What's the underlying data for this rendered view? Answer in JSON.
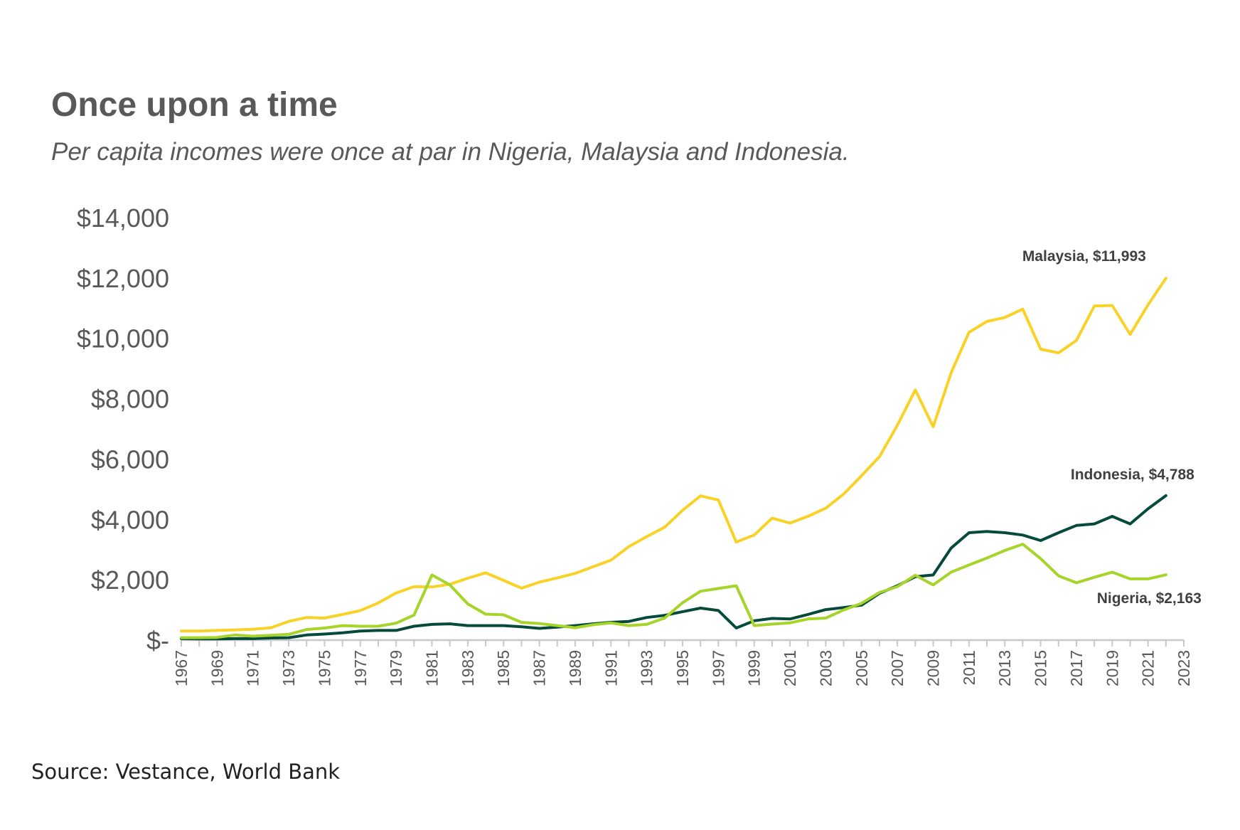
{
  "chart_data": {
    "type": "line",
    "title": "Once upon a time",
    "subtitle": "Per capita incomes were once at par in Nigeria, Malaysia and Indonesia.",
    "source": "Source: Vestance, World Bank",
    "x": [
      1967,
      1968,
      1969,
      1970,
      1971,
      1972,
      1973,
      1974,
      1975,
      1976,
      1977,
      1978,
      1979,
      1980,
      1981,
      1982,
      1983,
      1984,
      1985,
      1986,
      1987,
      1988,
      1989,
      1990,
      1991,
      1992,
      1993,
      1994,
      1995,
      1996,
      1997,
      1998,
      1999,
      2000,
      2001,
      2002,
      2003,
      2004,
      2005,
      2006,
      2007,
      2008,
      2009,
      2010,
      2011,
      2012,
      2013,
      2014,
      2015,
      2016,
      2017,
      2018,
      2019,
      2020,
      2021,
      2022
    ],
    "xlim": [
      1967,
      2023
    ],
    "x_tick_labels": [
      "1967",
      "1969",
      "1971",
      "1973",
      "1975",
      "1977",
      "1979",
      "1981",
      "1983",
      "1985",
      "1987",
      "1989",
      "1991",
      "1993",
      "1995",
      "1997",
      "1999",
      "2001",
      "2003",
      "2005",
      "2007",
      "2009",
      "2011",
      "2013",
      "2015",
      "2017",
      "2019",
      "2021",
      "2023"
    ],
    "ylim": [
      0,
      14000
    ],
    "y_ticks": [
      0,
      2000,
      4000,
      6000,
      8000,
      10000,
      12000,
      14000
    ],
    "y_tick_labels": [
      "$-",
      "$2,000",
      "$4,000",
      "$6,000",
      "$8,000",
      "$10,000",
      "$12,000",
      "$14,000"
    ],
    "grid": false,
    "series": [
      {
        "name": "Malaysia",
        "color": "#f9d228",
        "end_label": "$11,993",
        "values": [
          300,
          300,
          320,
          340,
          360,
          410,
          620,
          750,
          730,
          850,
          980,
          1230,
          1560,
          1770,
          1760,
          1850,
          2050,
          2230,
          1980,
          1720,
          1920,
          2060,
          2210,
          2430,
          2650,
          3100,
          3430,
          3740,
          4300,
          4780,
          4640,
          3250,
          3480,
          4040,
          3880,
          4100,
          4370,
          4840,
          5450,
          6080,
          7120,
          8290,
          7070,
          8860,
          10200,
          10560,
          10690,
          10970,
          9640,
          9520,
          9930,
          11070,
          11090,
          10130,
          11110,
          11993
        ]
      },
      {
        "name": "Indonesia",
        "color": "#064a3c",
        "end_label": "$4,788",
        "values": [
          50,
          40,
          40,
          50,
          50,
          70,
          80,
          170,
          200,
          240,
          300,
          320,
          320,
          460,
          520,
          540,
          480,
          480,
          480,
          440,
          390,
          430,
          480,
          540,
          590,
          620,
          750,
          820,
          940,
          1060,
          980,
          400,
          640,
          720,
          700,
          850,
          1010,
          1080,
          1160,
          1550,
          1800,
          2100,
          2160,
          3050,
          3560,
          3600,
          3560,
          3480,
          3300,
          3560,
          3800,
          3850,
          4100,
          3850,
          4350,
          4788
        ]
      },
      {
        "name": "Nigeria",
        "color": "#a6d42a",
        "end_label": "$2,163",
        "values": [
          80,
          80,
          90,
          170,
          130,
          160,
          190,
          350,
          400,
          480,
          460,
          460,
          560,
          830,
          2160,
          1830,
          1200,
          860,
          840,
          590,
          550,
          480,
          410,
          510,
          570,
          480,
          520,
          730,
          1240,
          1620,
          1710,
          1800,
          480,
          530,
          570,
          700,
          730,
          1000,
          1220,
          1580,
          1770,
          2150,
          1830,
          2250,
          2490,
          2720,
          2970,
          3180,
          2700,
          2130,
          1900,
          2080,
          2250,
          2030,
          2030,
          2163
        ]
      }
    ],
    "legend": "end-of-line labels"
  }
}
